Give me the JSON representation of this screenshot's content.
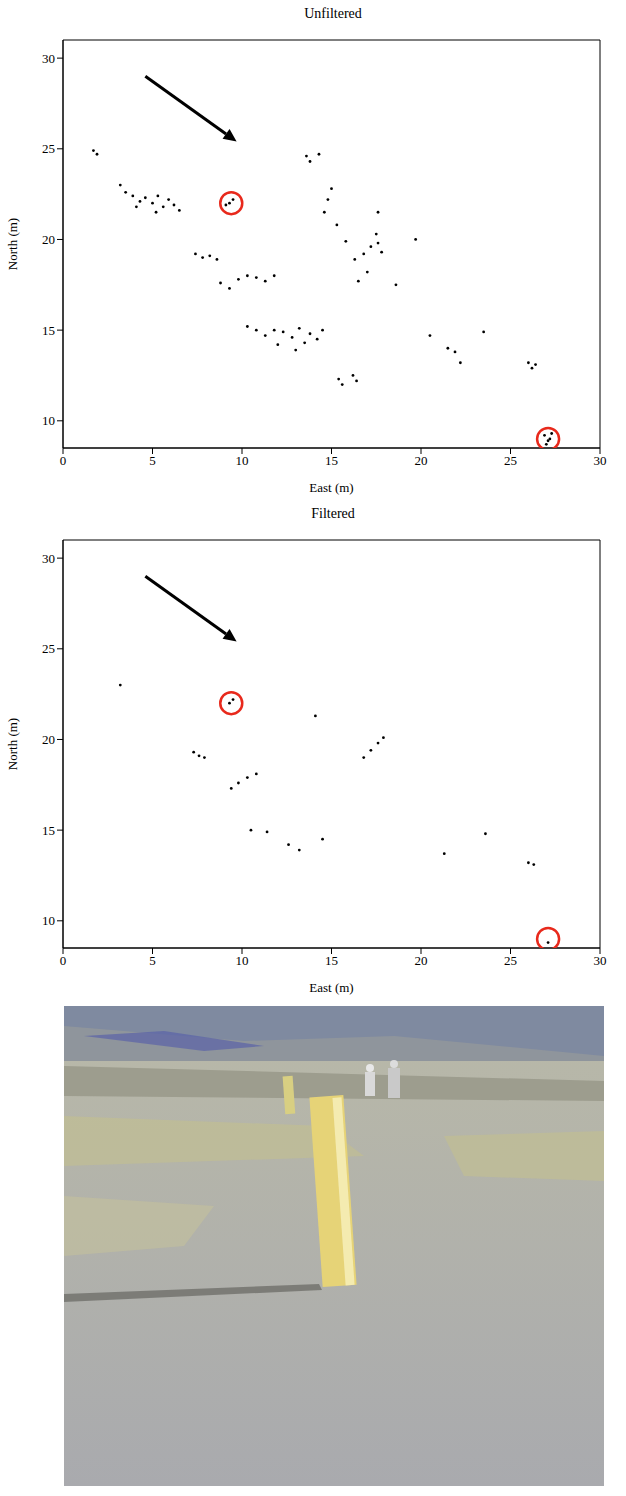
{
  "chart_data": [
    {
      "type": "scatter",
      "title": "Unfiltered",
      "x_label": "East (m)",
      "y_label": "North (m)",
      "xlim": [
        0,
        30
      ],
      "ylim": [
        8.5,
        31
      ],
      "xticks": [
        0,
        5,
        10,
        15,
        20,
        25,
        30
      ],
      "yticks": [
        10,
        15,
        20,
        25,
        30
      ],
      "grid": false,
      "color": "#000000",
      "marker": "dot",
      "x": [
        1.7,
        1.9,
        3.2,
        3.5,
        3.9,
        4.3,
        4.6,
        5.0,
        5.3,
        5.6,
        5.9,
        6.2,
        6.5,
        4.1,
        5.2,
        9.3,
        9.5,
        9.1,
        7.4,
        7.8,
        8.2,
        8.6,
        8.8,
        9.3,
        9.8,
        10.3,
        10.8,
        11.3,
        11.8,
        10.3,
        10.8,
        11.3,
        11.8,
        12.3,
        12.8,
        13.2,
        13.5,
        13.8,
        14.2,
        14.5,
        12.0,
        13.0,
        15.4,
        15.6,
        16.2,
        16.4,
        13.6,
        13.8,
        14.3,
        14.8,
        15.0,
        14.6,
        15.3,
        15.8,
        16.3,
        16.8,
        17.2,
        17.6,
        17.8,
        17.5,
        16.5,
        17.0,
        17.6,
        20.5,
        21.5,
        21.9,
        22.2,
        23.5,
        26.0,
        26.2,
        26.4,
        26.9,
        27.1,
        27.3,
        27.0,
        27.2,
        19.7,
        18.6
      ],
      "values": [
        24.9,
        24.7,
        23.0,
        22.6,
        22.4,
        22.1,
        22.3,
        22.0,
        22.4,
        21.8,
        22.2,
        21.9,
        21.6,
        21.8,
        21.5,
        22.0,
        22.2,
        21.9,
        19.2,
        19.0,
        19.1,
        18.9,
        17.6,
        17.3,
        17.8,
        18.0,
        17.9,
        17.7,
        18.0,
        15.2,
        15.0,
        14.7,
        15.0,
        14.9,
        14.6,
        15.1,
        14.3,
        14.8,
        14.5,
        15.0,
        14.2,
        13.9,
        12.3,
        12.0,
        12.5,
        12.2,
        24.6,
        24.3,
        24.7,
        22.2,
        22.8,
        21.5,
        20.8,
        19.9,
        18.9,
        19.2,
        19.6,
        19.8,
        19.3,
        20.3,
        17.7,
        18.2,
        21.5,
        14.7,
        14.0,
        13.8,
        13.2,
        14.9,
        13.2,
        12.9,
        13.1,
        9.2,
        8.9,
        9.3,
        8.7,
        9.0,
        20.0,
        17.5
      ],
      "highlights": {
        "x": [
          9.4,
          27.1
        ],
        "y": [
          22,
          9
        ],
        "color": "#e8291c",
        "marker": "circle"
      },
      "arrow": {
        "x": [
          4.6,
          9.7
        ],
        "y": [
          29,
          25.4
        ],
        "color": "#000000"
      }
    },
    {
      "type": "scatter",
      "title": "Filtered",
      "x_label": "East (m)",
      "y_label": "North (m)",
      "xlim": [
        0,
        30
      ],
      "ylim": [
        8.5,
        31
      ],
      "xticks": [
        0,
        5,
        10,
        15,
        20,
        25,
        30
      ],
      "yticks": [
        10,
        15,
        20,
        25,
        30
      ],
      "grid": false,
      "color": "#000000",
      "marker": "dot",
      "x": [
        3.2,
        7.3,
        7.6,
        7.9,
        9.3,
        9.5,
        9.4,
        9.8,
        10.3,
        10.8,
        10.5,
        11.4,
        12.6,
        13.2,
        14.1,
        16.8,
        17.2,
        17.6,
        17.9,
        21.3,
        23.6,
        26.0,
        26.3,
        27.1,
        14.5
      ],
      "values": [
        23.0,
        19.3,
        19.1,
        19.0,
        22.0,
        22.2,
        17.3,
        17.6,
        17.9,
        18.1,
        15.0,
        14.9,
        14.2,
        13.9,
        21.3,
        19.0,
        19.4,
        19.8,
        20.1,
        13.7,
        14.8,
        13.2,
        13.1,
        8.8,
        14.5
      ],
      "highlights": {
        "x": [
          9.4,
          27.1
        ],
        "y": [
          22,
          9
        ],
        "color": "#e8291c",
        "marker": "circle"
      },
      "arrow": {
        "x": [
          4.6,
          9.7
        ],
        "y": [
          29,
          25.4
        ],
        "color": "#000000"
      }
    }
  ]
}
